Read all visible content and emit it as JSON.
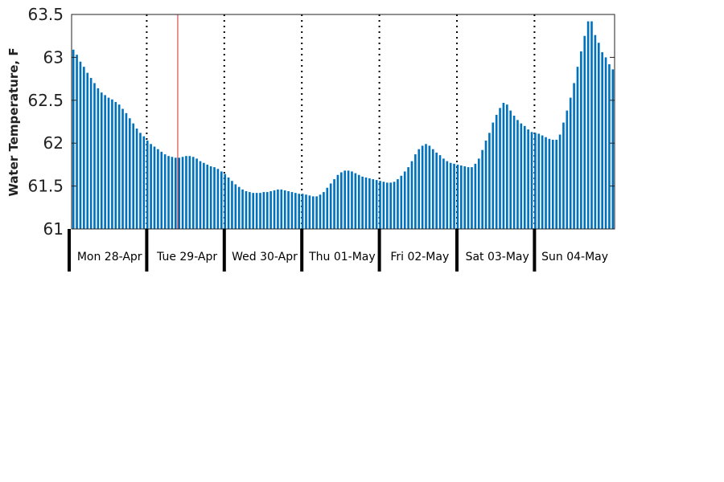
{
  "chart_data": {
    "type": "bar",
    "ylabel": "Water Temperature, F",
    "ylim": [
      61,
      63.5
    ],
    "x_range_days": [
      0,
      7
    ],
    "yticks": [
      {
        "value": 61,
        "label": "61"
      },
      {
        "value": 61.5,
        "label": "61.5"
      },
      {
        "value": 62,
        "label": "62"
      },
      {
        "value": 62.5,
        "label": "62.5"
      },
      {
        "value": 63,
        "label": "63"
      },
      {
        "value": 63.5,
        "label": "63.5"
      }
    ],
    "day_labels": [
      "Mon 28-Apr",
      "Tue 29-Apr",
      "Wed 30-Apr",
      "Thu 01-May",
      "Fri 02-May",
      "Sat 03-May",
      "Sun 04-May"
    ],
    "bar_color": "#0072bd",
    "current_time_marker": {
      "day_offset": 1.4,
      "color": "#d62728"
    },
    "series": [
      {
        "values": [
          63.09,
          63.03,
          62.95,
          62.89,
          62.82,
          62.76,
          62.7,
          62.64,
          62.59,
          62.56,
          62.53,
          62.51,
          62.48,
          62.45,
          62.4,
          62.35,
          62.29,
          62.23,
          62.17,
          62.12,
          62.08,
          62.03,
          61.99,
          61.96,
          61.93,
          61.9,
          61.87,
          61.85,
          61.84,
          61.83,
          61.83,
          61.84,
          61.85,
          61.85,
          61.84,
          61.82,
          61.79,
          61.77,
          61.75,
          61.73,
          61.72,
          61.7,
          61.67,
          61.64,
          61.6,
          61.56,
          61.52,
          61.49,
          61.46,
          61.44,
          61.43,
          61.42,
          61.42,
          61.42,
          61.43,
          61.43,
          61.44,
          61.45,
          61.46,
          61.46,
          61.45,
          61.44,
          61.43,
          61.42,
          61.41,
          61.41,
          61.4,
          61.39,
          61.38,
          61.38,
          61.4,
          61.43,
          61.48,
          61.53,
          61.58,
          61.63,
          61.66,
          61.68,
          61.68,
          61.67,
          61.65,
          61.63,
          61.61,
          61.6,
          61.59,
          61.58,
          61.57,
          61.56,
          61.55,
          61.54,
          61.54,
          61.55,
          61.58,
          61.62,
          61.67,
          61.72,
          61.79,
          61.87,
          61.93,
          61.97,
          61.99,
          61.97,
          61.93,
          61.89,
          61.86,
          61.82,
          61.79,
          61.77,
          61.76,
          61.75,
          61.74,
          61.73,
          61.72,
          61.72,
          61.76,
          61.82,
          61.92,
          62.03,
          62.12,
          62.24,
          62.33,
          62.41,
          62.47,
          62.45,
          62.38,
          62.32,
          62.27,
          62.23,
          62.2,
          62.16,
          62.13,
          62.12,
          62.11,
          62.09,
          62.07,
          62.05,
          62.04,
          62.04,
          62.1,
          62.24,
          62.38,
          62.53,
          62.7,
          62.89,
          63.07,
          63.25,
          63.42,
          63.42,
          63.26,
          63.17,
          63.06,
          63.0,
          62.92,
          62.86
        ]
      }
    ]
  }
}
